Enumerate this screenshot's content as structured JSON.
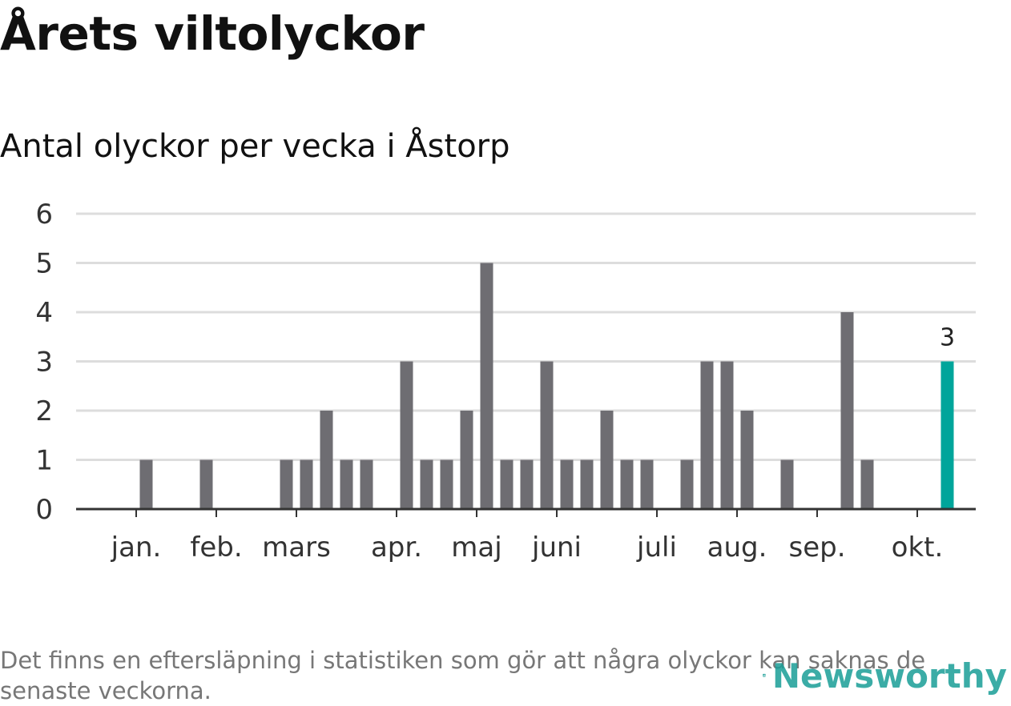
{
  "title": "Årets viltolyckor",
  "subtitle": "Antal olyckor per vecka i Åstorp",
  "footnote": "Det finns en eftersläpning i statistiken som gör att några olyckor kan saknas de senaste veckorna.",
  "logo": {
    "name": "Newsworthy",
    "icon": "bar-chart-logo-icon"
  },
  "colors": {
    "bar": "#6e6d72",
    "highlight": "#00a59b",
    "grid": "#dddddd",
    "axis": "#333333"
  },
  "chart_data": {
    "type": "bar",
    "title": "Antal olyckor per vecka i Åstorp",
    "xlabel": "",
    "ylabel": "",
    "ylim": [
      0,
      6
    ],
    "yticks": [
      0,
      1,
      2,
      3,
      4,
      5,
      6
    ],
    "weeks": [
      1,
      2,
      3,
      4,
      5,
      6,
      7,
      8,
      9,
      10,
      11,
      12,
      13,
      14,
      15,
      16,
      17,
      18,
      19,
      20,
      21,
      22,
      23,
      24,
      25,
      26,
      27,
      28,
      29,
      30,
      31,
      32,
      33,
      34,
      35,
      36,
      37,
      38,
      39,
      40,
      41,
      42,
      43,
      44
    ],
    "values": [
      0,
      0,
      0,
      1,
      0,
      0,
      1,
      0,
      0,
      0,
      1,
      1,
      2,
      1,
      1,
      0,
      3,
      1,
      1,
      2,
      5,
      1,
      1,
      3,
      1,
      1,
      2,
      1,
      1,
      0,
      1,
      3,
      3,
      2,
      0,
      1,
      0,
      0,
      4,
      1,
      0,
      0,
      0,
      3
    ],
    "month_ticks": [
      {
        "label": "jan.",
        "week": 3.5
      },
      {
        "label": "feb.",
        "week": 7.5
      },
      {
        "label": "mars",
        "week": 11.5
      },
      {
        "label": "apr.",
        "week": 16.5
      },
      {
        "label": "maj",
        "week": 20.5
      },
      {
        "label": "juni",
        "week": 24.5
      },
      {
        "label": "juli",
        "week": 29.5
      },
      {
        "label": "aug.",
        "week": 33.5
      },
      {
        "label": "sep.",
        "week": 37.5
      },
      {
        "label": "okt.",
        "week": 42.5
      }
    ],
    "highlight": {
      "week": 44,
      "value": 3,
      "label": "3"
    }
  }
}
